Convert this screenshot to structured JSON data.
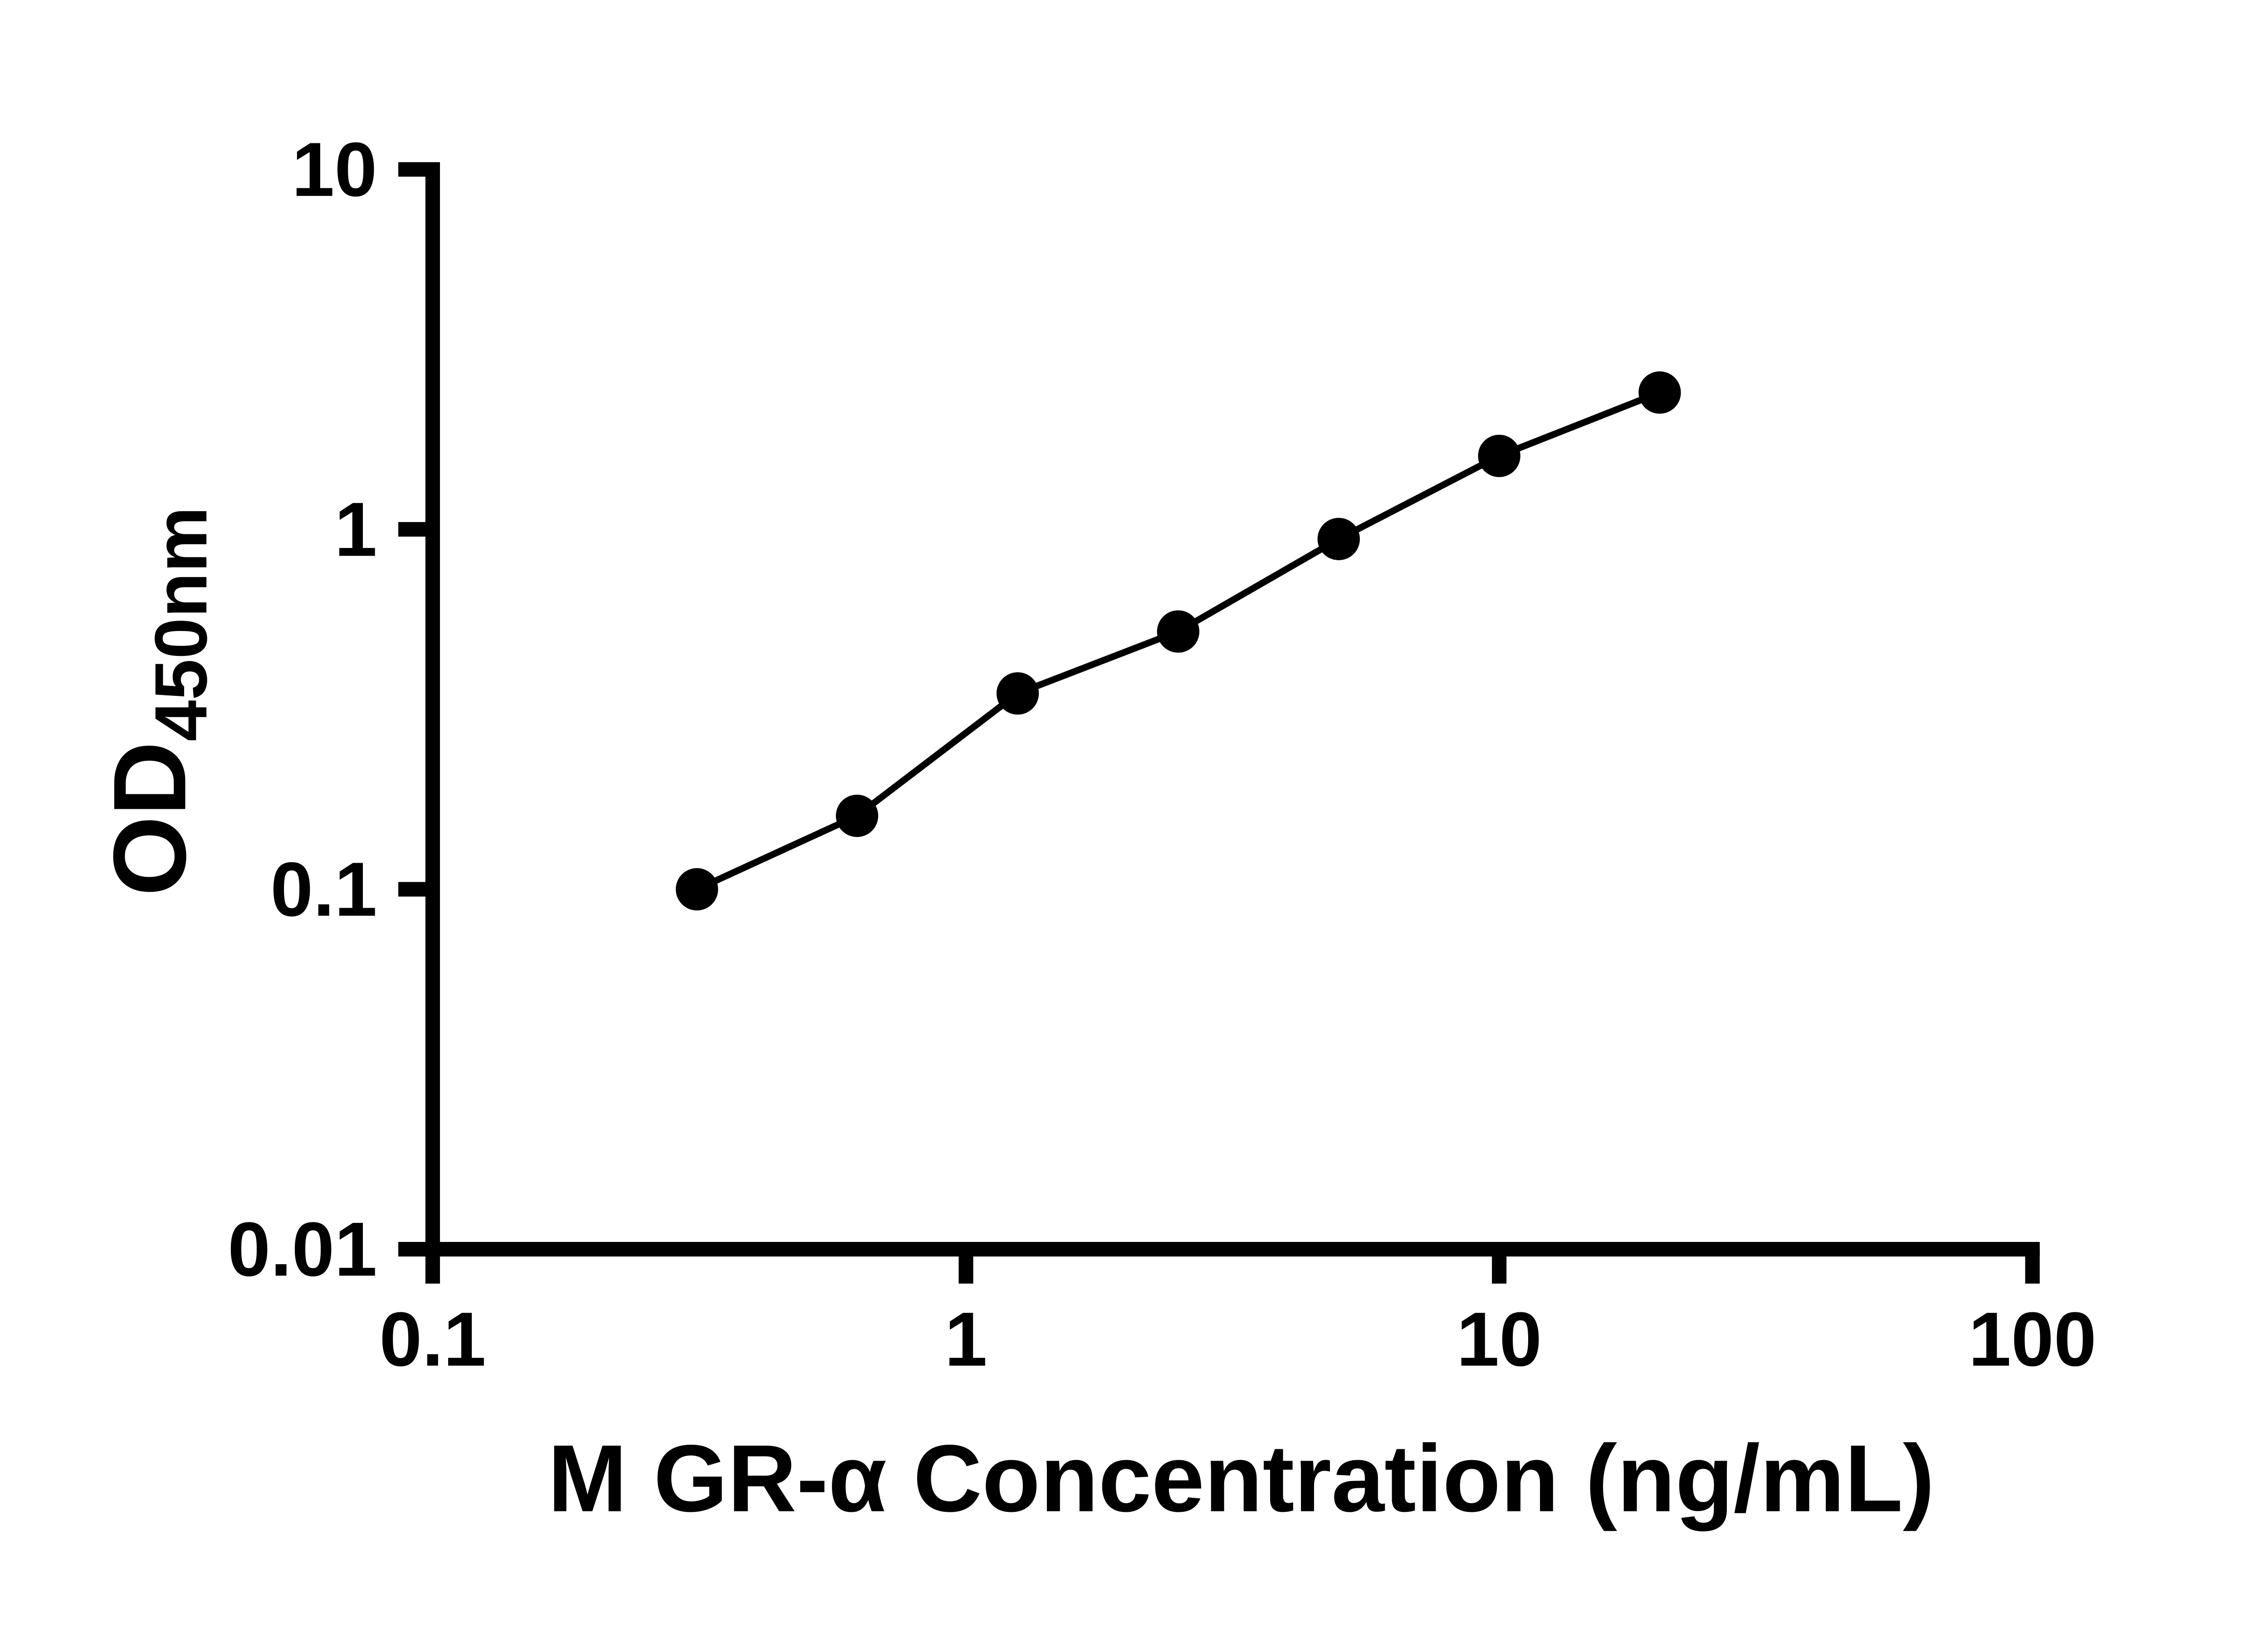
{
  "chart_data": {
    "type": "line",
    "subtype": "scatter-with-connecting-line",
    "title": "",
    "xlabel": "M GR-α Concentration (ng/mL)",
    "ylabel_main": "OD",
    "ylabel_sub": "450nm",
    "x": [
      0.313,
      0.625,
      1.25,
      2.5,
      5,
      10,
      20
    ],
    "y": [
      0.1,
      0.16,
      0.35,
      0.52,
      0.94,
      1.6,
      2.4
    ],
    "xlim": [
      0.1,
      100
    ],
    "ylim": [
      0.01,
      10
    ],
    "x_scale": "log",
    "y_scale": "log",
    "x_ticks": [
      0.1,
      1,
      10,
      100
    ],
    "x_tick_labels": [
      "0.1",
      "1",
      "10",
      "100"
    ],
    "y_ticks": [
      0.01,
      0.1,
      1,
      10
    ],
    "y_tick_labels": [
      "0.01",
      "0.1",
      "1",
      "10"
    ],
    "grid": false,
    "legend": "none",
    "marker_color": "#000000",
    "line_color": "#000000",
    "axis_color": "#000000",
    "background_color": "#ffffff"
  }
}
